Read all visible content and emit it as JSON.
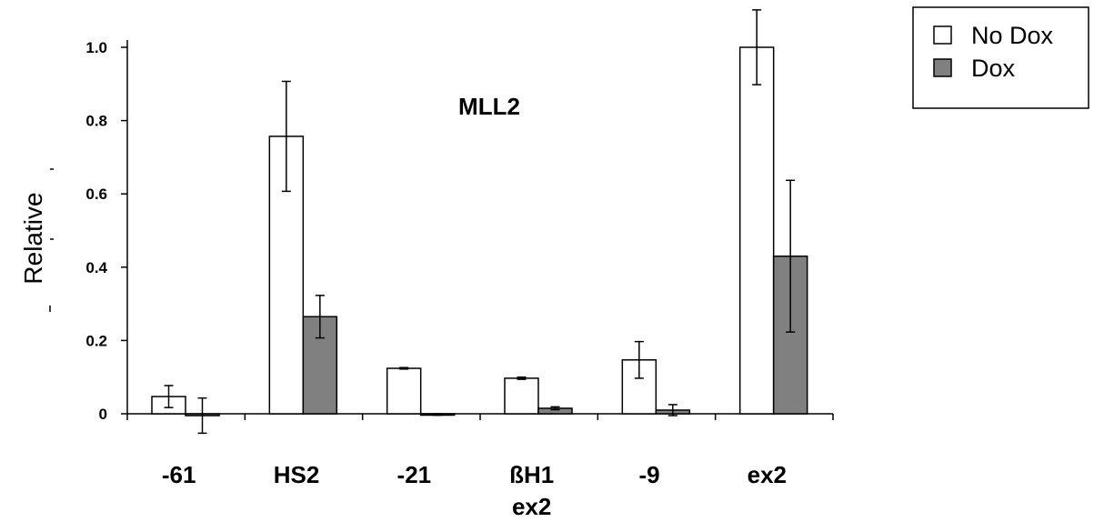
{
  "chart_data": {
    "type": "bar",
    "title": "MLL2",
    "ylabel": "Relative",
    "xlabel": "",
    "ylim": [
      0,
      1.0
    ],
    "yticks": [
      "0",
      "0.2",
      "0.4",
      "0.6",
      "0.8",
      "1.0"
    ],
    "categories": [
      "-61",
      "HS2",
      "-21",
      "ßH1",
      "-9",
      "ex2"
    ],
    "category_sublabels": [
      "",
      "",
      "",
      "ex2",
      "",
      ""
    ],
    "series": [
      {
        "name": "No Dox",
        "color": "#ffffff",
        "values": [
          0.047,
          0.757,
          0.124,
          0.097,
          0.147,
          1.0
        ],
        "errors": [
          0.03,
          0.15,
          0.002,
          0.003,
          0.05,
          0.102
        ]
      },
      {
        "name": "Dox",
        "color": "#808080",
        "values": [
          -0.005,
          0.265,
          -0.002,
          0.015,
          0.01,
          0.43
        ],
        "errors": [
          0.048,
          0.058,
          0.002,
          0.004,
          0.015,
          0.207
        ]
      }
    ],
    "legend": "top-right",
    "grid": false
  }
}
